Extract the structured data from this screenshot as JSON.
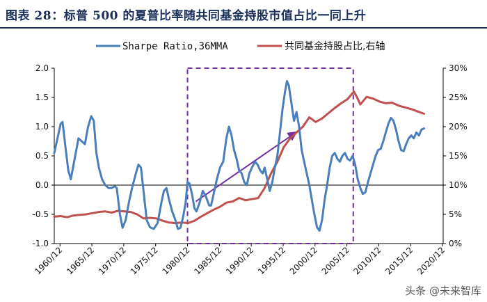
{
  "figure": {
    "title": "图表 28：标普 500 的夏普比率随共同基金持股市值占比一同上升",
    "watermark": "头条 @未来智库"
  },
  "chart_data": {
    "type": "line",
    "title": "标普 500 的夏普比率随共同基金持股市值占比一同上升",
    "x_range": [
      1960.0,
      2021.0
    ],
    "x_tick_labels": [
      "1960/12",
      "1965/12",
      "1970/12",
      "1975/12",
      "1980/12",
      "1985/12",
      "1990/12",
      "1995/12",
      "2000/12",
      "2005/12",
      "2010/12",
      "2015/12",
      "2020/12"
    ],
    "x_tick_years": [
      1960.9,
      1965.9,
      1970.9,
      1975.9,
      1980.9,
      1985.9,
      1990.9,
      1995.9,
      2000.9,
      2005.9,
      2010.9,
      2015.9,
      2020.9
    ],
    "y_left": {
      "range": [
        -1.0,
        2.0
      ],
      "tick_labels": [
        "-1.0",
        "-0.5",
        "0.0",
        "0.5",
        "1.0",
        "1.5",
        "2.0"
      ],
      "ticks": [
        -1.0,
        -0.5,
        0.0,
        0.5,
        1.0,
        1.5,
        2.0
      ]
    },
    "y_right": {
      "range": [
        0,
        30
      ],
      "tick_labels": [
        "0%",
        "5%",
        "10%",
        "15%",
        "20%",
        "25%",
        "30%"
      ],
      "ticks": [
        0,
        5,
        10,
        15,
        20,
        25,
        30
      ]
    },
    "series": [
      {
        "name": "Sharpe Ratio,36MMA",
        "axis": "left",
        "color": "#4a7ebb",
        "points": [
          [
            1960.0,
            0.55
          ],
          [
            1960.5,
            0.8
          ],
          [
            1961.0,
            1.05
          ],
          [
            1961.3,
            1.08
          ],
          [
            1961.7,
            0.7
          ],
          [
            1962.2,
            0.25
          ],
          [
            1962.6,
            0.1
          ],
          [
            1963.2,
            0.45
          ],
          [
            1963.8,
            0.8
          ],
          [
            1964.3,
            0.75
          ],
          [
            1964.8,
            0.7
          ],
          [
            1965.3,
            1.0
          ],
          [
            1965.8,
            1.18
          ],
          [
            1966.2,
            1.1
          ],
          [
            1966.6,
            0.55
          ],
          [
            1967.0,
            0.3
          ],
          [
            1967.5,
            0.1
          ],
          [
            1968.0,
            0.0
          ],
          [
            1968.5,
            -0.05
          ],
          [
            1969.0,
            -0.05
          ],
          [
            1969.5,
            -0.02
          ],
          [
            1969.8,
            -0.05
          ],
          [
            1970.3,
            -0.5
          ],
          [
            1970.7,
            -0.73
          ],
          [
            1971.2,
            -0.6
          ],
          [
            1971.7,
            -0.3
          ],
          [
            1972.2,
            -0.05
          ],
          [
            1972.8,
            0.2
          ],
          [
            1973.2,
            0.35
          ],
          [
            1973.6,
            0.3
          ],
          [
            1974.0,
            -0.1
          ],
          [
            1974.5,
            -0.6
          ],
          [
            1975.0,
            -0.72
          ],
          [
            1975.6,
            -0.75
          ],
          [
            1976.2,
            -0.65
          ],
          [
            1976.8,
            -0.3
          ],
          [
            1977.2,
            -0.1
          ],
          [
            1977.6,
            -0.05
          ],
          [
            1978.0,
            -0.25
          ],
          [
            1978.5,
            -0.45
          ],
          [
            1979.0,
            -0.6
          ],
          [
            1979.4,
            -0.75
          ],
          [
            1979.8,
            -0.73
          ],
          [
            1980.2,
            -0.55
          ],
          [
            1980.6,
            -0.3
          ],
          [
            1980.9,
            0.05
          ],
          [
            1981.2,
            0.03
          ],
          [
            1981.6,
            -0.15
          ],
          [
            1982.0,
            -0.4
          ],
          [
            1982.3,
            -0.45
          ],
          [
            1982.8,
            -0.3
          ],
          [
            1983.3,
            -0.1
          ],
          [
            1983.8,
            -0.2
          ],
          [
            1984.3,
            -0.35
          ],
          [
            1984.6,
            -0.35
          ],
          [
            1985.0,
            -0.15
          ],
          [
            1985.5,
            0.1
          ],
          [
            1986.0,
            0.3
          ],
          [
            1986.5,
            0.4
          ],
          [
            1987.0,
            0.8
          ],
          [
            1987.4,
            1.0
          ],
          [
            1987.8,
            0.85
          ],
          [
            1988.2,
            0.6
          ],
          [
            1988.6,
            0.45
          ],
          [
            1989.0,
            0.25
          ],
          [
            1989.4,
            0.2
          ],
          [
            1989.8,
            0.05
          ],
          [
            1990.2,
            0.0
          ],
          [
            1990.6,
            0.2
          ],
          [
            1991.0,
            0.3
          ],
          [
            1991.5,
            0.4
          ],
          [
            1991.9,
            0.35
          ],
          [
            1992.3,
            0.25
          ],
          [
            1992.7,
            0.2
          ],
          [
            1993.0,
            0.3
          ],
          [
            1993.4,
            0.1
          ],
          [
            1993.8,
            -0.1
          ],
          [
            1994.2,
            0.05
          ],
          [
            1994.6,
            0.3
          ],
          [
            1995.0,
            0.5
          ],
          [
            1995.4,
            0.9
          ],
          [
            1995.8,
            1.3
          ],
          [
            1996.2,
            1.6
          ],
          [
            1996.5,
            1.78
          ],
          [
            1996.8,
            1.7
          ],
          [
            1997.2,
            1.4
          ],
          [
            1997.6,
            1.1
          ],
          [
            1998.0,
            1.25
          ],
          [
            1998.4,
            1.0
          ],
          [
            1998.8,
            0.6
          ],
          [
            1999.2,
            0.4
          ],
          [
            1999.6,
            0.2
          ],
          [
            2000.0,
            0.0
          ],
          [
            2000.4,
            -0.25
          ],
          [
            2000.8,
            -0.5
          ],
          [
            2001.2,
            -0.72
          ],
          [
            2001.6,
            -0.78
          ],
          [
            2002.0,
            -0.6
          ],
          [
            2002.4,
            -0.25
          ],
          [
            2002.8,
            0.0
          ],
          [
            2003.2,
            0.3
          ],
          [
            2003.6,
            0.5
          ],
          [
            2004.0,
            0.55
          ],
          [
            2004.4,
            0.45
          ],
          [
            2004.8,
            0.4
          ],
          [
            2005.2,
            0.5
          ],
          [
            2005.6,
            0.55
          ],
          [
            2006.0,
            0.45
          ],
          [
            2006.4,
            0.42
          ],
          [
            2006.8,
            0.5
          ],
          [
            2007.2,
            0.35
          ],
          [
            2007.6,
            0.1
          ],
          [
            2008.0,
            -0.05
          ],
          [
            2008.4,
            -0.15
          ],
          [
            2008.8,
            -0.12
          ],
          [
            2009.2,
            0.05
          ],
          [
            2009.6,
            0.2
          ],
          [
            2010.0,
            0.35
          ],
          [
            2010.4,
            0.5
          ],
          [
            2010.8,
            0.6
          ],
          [
            2011.2,
            0.62
          ],
          [
            2011.6,
            0.75
          ],
          [
            2012.0,
            0.9
          ],
          [
            2012.4,
            1.05
          ],
          [
            2012.8,
            1.15
          ],
          [
            2013.2,
            1.1
          ],
          [
            2013.6,
            0.95
          ],
          [
            2014.0,
            0.75
          ],
          [
            2014.4,
            0.6
          ],
          [
            2014.8,
            0.58
          ],
          [
            2015.2,
            0.7
          ],
          [
            2015.6,
            0.8
          ],
          [
            2016.0,
            0.85
          ],
          [
            2016.4,
            0.8
          ],
          [
            2016.8,
            0.9
          ],
          [
            2017.2,
            0.85
          ],
          [
            2017.6,
            0.95
          ],
          [
            2018.0,
            0.97
          ]
        ]
      },
      {
        "name": "共同基金持股占比,右轴",
        "axis": "right",
        "color": "#c0504d",
        "points": [
          [
            1960.0,
            4.6
          ],
          [
            1961.0,
            4.7
          ],
          [
            1962.0,
            4.5
          ],
          [
            1963.0,
            4.8
          ],
          [
            1964.0,
            4.9
          ],
          [
            1965.0,
            5.0
          ],
          [
            1966.0,
            5.2
          ],
          [
            1967.0,
            5.4
          ],
          [
            1968.0,
            5.5
          ],
          [
            1969.0,
            5.3
          ],
          [
            1970.0,
            5.6
          ],
          [
            1971.0,
            5.5
          ],
          [
            1972.0,
            5.4
          ],
          [
            1973.0,
            5.0
          ],
          [
            1974.0,
            4.3
          ],
          [
            1975.0,
            4.4
          ],
          [
            1976.0,
            4.3
          ],
          [
            1977.0,
            3.9
          ],
          [
            1978.0,
            3.6
          ],
          [
            1979.0,
            3.5
          ],
          [
            1980.0,
            3.6
          ],
          [
            1981.0,
            3.5
          ],
          [
            1982.0,
            3.9
          ],
          [
            1983.0,
            4.6
          ],
          [
            1984.0,
            5.2
          ],
          [
            1985.0,
            5.8
          ],
          [
            1986.0,
            6.3
          ],
          [
            1987.0,
            7.0
          ],
          [
            1988.0,
            7.2
          ],
          [
            1989.0,
            7.8
          ],
          [
            1990.0,
            7.4
          ],
          [
            1991.0,
            7.6
          ],
          [
            1992.0,
            7.8
          ],
          [
            1993.0,
            9.5
          ],
          [
            1994.0,
            12.0
          ],
          [
            1995.0,
            14.0
          ],
          [
            1996.0,
            16.5
          ],
          [
            1997.0,
            18.0
          ],
          [
            1998.0,
            19.0
          ],
          [
            1999.0,
            20.0
          ],
          [
            2000.0,
            21.6
          ],
          [
            2001.0,
            20.8
          ],
          [
            2002.0,
            21.4
          ],
          [
            2003.0,
            22.3
          ],
          [
            2004.0,
            23.2
          ],
          [
            2005.0,
            24.0
          ],
          [
            2006.0,
            24.7
          ],
          [
            2007.0,
            26.0
          ],
          [
            2007.5,
            25.0
          ],
          [
            2008.0,
            23.8
          ],
          [
            2009.0,
            25.1
          ],
          [
            2010.0,
            24.8
          ],
          [
            2011.0,
            24.3
          ],
          [
            2012.0,
            24.0
          ],
          [
            2013.0,
            24.1
          ],
          [
            2014.0,
            23.6
          ],
          [
            2015.0,
            23.3
          ],
          [
            2016.0,
            23.0
          ],
          [
            2017.0,
            22.6
          ],
          [
            2018.0,
            22.2
          ]
        ]
      }
    ],
    "annotations": [
      {
        "type": "dashed-box",
        "color": "#7030a0",
        "x_from": 1980.9,
        "x_to": 2006.9,
        "y_from": -1.0,
        "y_to": 2.0
      },
      {
        "type": "arrow",
        "color": "#7030a0",
        "from": [
          1982.2,
          -0.28
        ],
        "to": [
          1997.9,
          0.9
        ]
      }
    ]
  }
}
